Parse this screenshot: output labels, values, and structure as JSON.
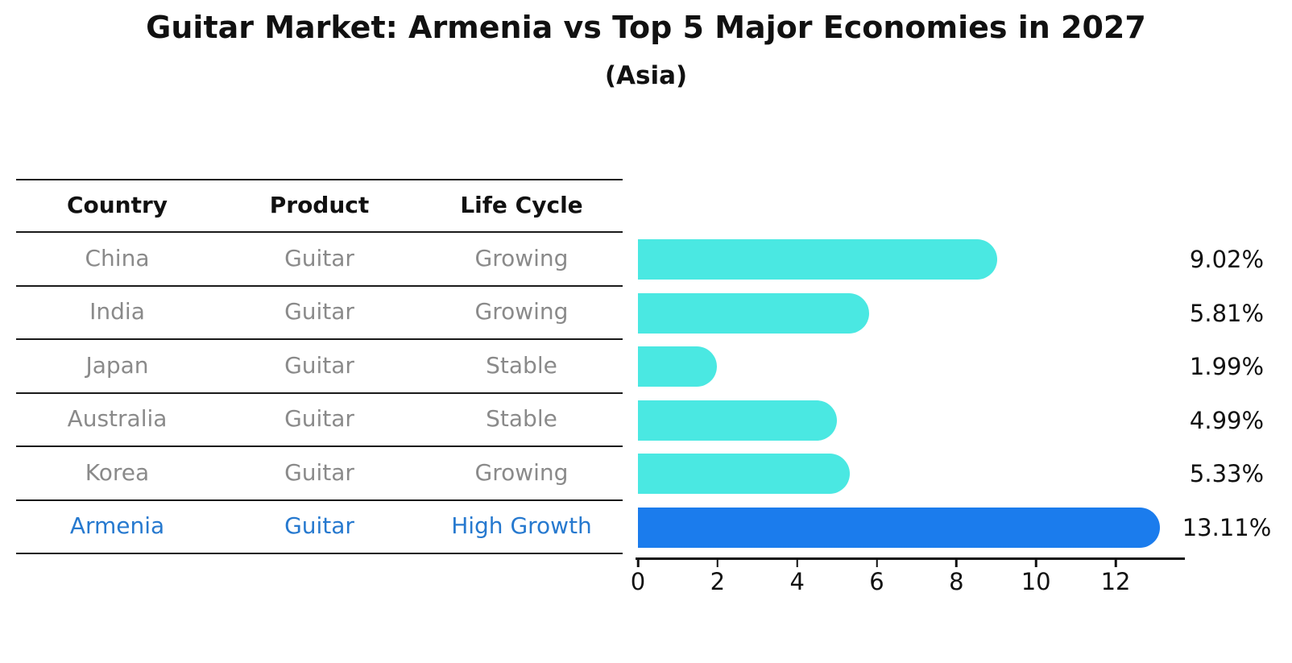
{
  "title": "Guitar Market: Armenia vs Top 5 Major Economies in 2027",
  "subtitle": "(Asia)",
  "table": {
    "headers": [
      "Country",
      "Product",
      "Life Cycle"
    ],
    "rows": [
      {
        "country": "China",
        "product": "Guitar",
        "life_cycle": "Growing",
        "highlight": false
      },
      {
        "country": "India",
        "product": "Guitar",
        "life_cycle": "Growing",
        "highlight": false
      },
      {
        "country": "Japan",
        "product": "Guitar",
        "life_cycle": "Stable",
        "highlight": false
      },
      {
        "country": "Australia",
        "product": "Guitar",
        "life_cycle": "Stable",
        "highlight": false
      },
      {
        "country": "Korea",
        "product": "Guitar",
        "life_cycle": "Growing",
        "highlight": false
      },
      {
        "country": "Armenia",
        "product": "Guitar",
        "life_cycle": "High Growth",
        "highlight": true
      }
    ]
  },
  "chart_data": {
    "type": "bar",
    "orientation": "horizontal",
    "title": "Guitar Market: Armenia vs Top 5 Major Economies in 2027",
    "subtitle": "(Asia)",
    "categories": [
      "China",
      "India",
      "Japan",
      "Australia",
      "Korea",
      "Armenia"
    ],
    "values": [
      9.02,
      5.81,
      1.99,
      4.99,
      5.33,
      13.11
    ],
    "value_labels": [
      "9.02%",
      "5.81%",
      "1.99%",
      "4.99%",
      "5.33%",
      "13.11%"
    ],
    "x_ticks": [
      0,
      2,
      4,
      6,
      8,
      10,
      12
    ],
    "xlim": [
      0,
      13.75
    ],
    "grid": false,
    "legend_position": "none",
    "highlight_index": 5
  },
  "colors": {
    "bar": "#4ae8e2",
    "highlight_bar": "#1b7ced",
    "highlight_text": "#2679cf",
    "row_text": "#8a8a8a",
    "text": "#111111"
  }
}
